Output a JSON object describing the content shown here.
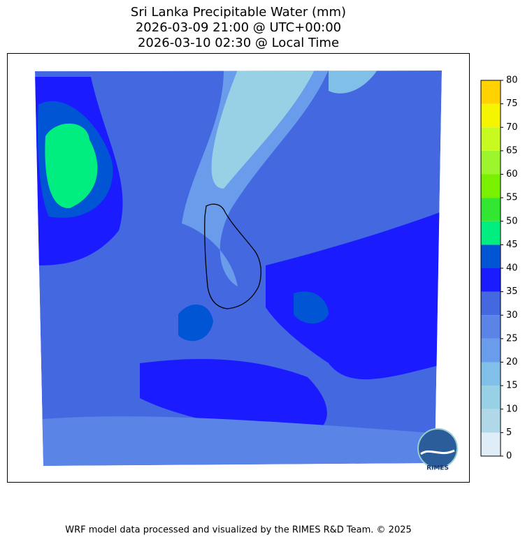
{
  "map": {
    "title": [
      "Sri Lanka Precipitable Water (mm)",
      "2026-03-09 21:00 @ UTC+00:00",
      "2026-03-10 02:30 @ Local Time"
    ],
    "colorbar": {
      "ticks": [
        0,
        5,
        10,
        15,
        20,
        25,
        30,
        35,
        40,
        45,
        50,
        55,
        60,
        65,
        70,
        75,
        80
      ],
      "colors": [
        "#deedf7",
        "#b0d8e8",
        "#98d0e6",
        "#80bfe8",
        "#6a9cec",
        "#5a84e6",
        "#4468e0",
        "#1a1cff",
        "#0055d4",
        "#00ee80",
        "#32e632",
        "#78f000",
        "#9cf52c",
        "#c8fa20",
        "#f5f500",
        "#ffd200"
      ]
    },
    "logo": "RIMES",
    "footer": "WRF model data processed and visualized by the RIMES R&D Team. © 2025"
  }
}
